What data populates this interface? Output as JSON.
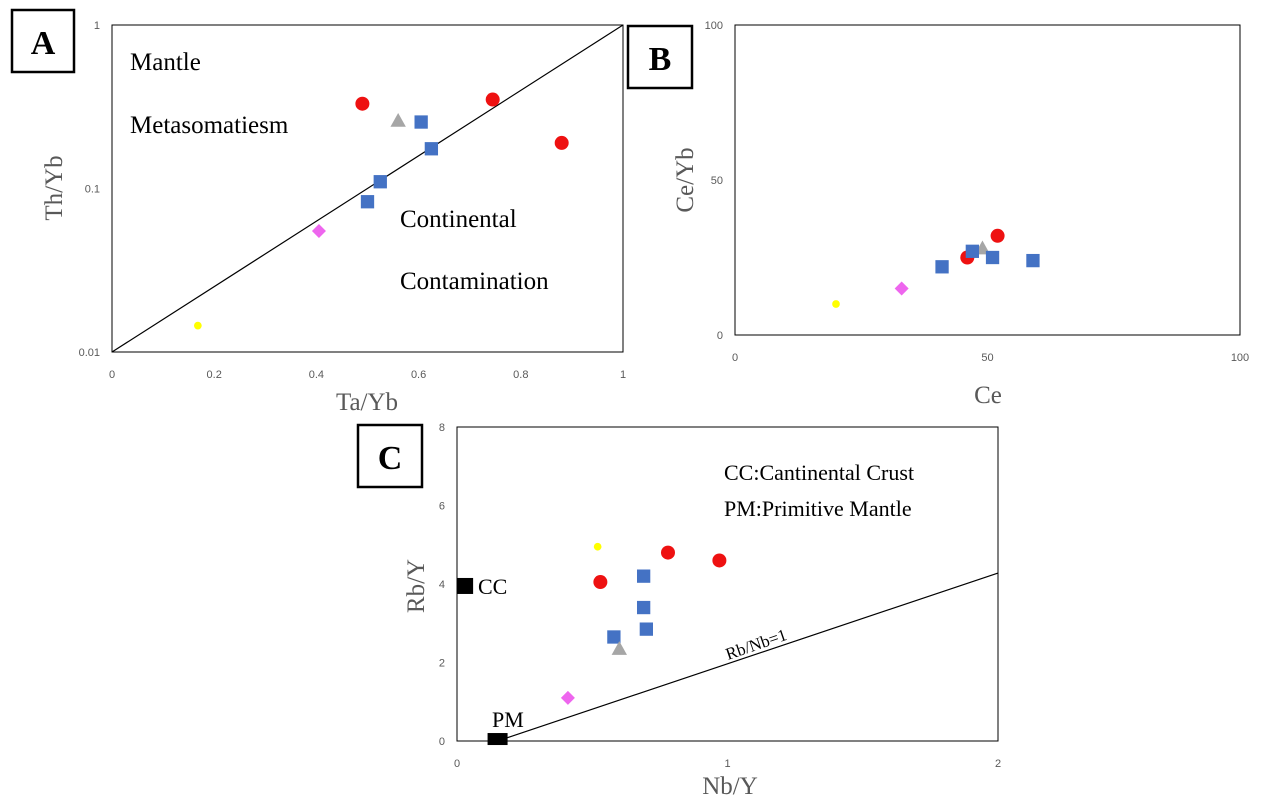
{
  "colors": {
    "red": "#ee1111",
    "blue": "#4472c4",
    "gray": "#a6a6a6",
    "yellow": "#ffff00",
    "magenta": "#ee66ee",
    "black": "#000000"
  },
  "chart_data": [
    {
      "panel": "A",
      "type": "scatter",
      "xlabel": "Ta/Yb",
      "ylabel": "Th/Yb",
      "xlim": [
        0,
        1
      ],
      "ylim": [
        0.01,
        1
      ],
      "y_scale": "log",
      "x_ticks": [
        "0",
        "0.2",
        "0.4",
        "0.6",
        "0.8",
        "1"
      ],
      "y_ticks": [
        "0.01",
        "0.1",
        "1"
      ],
      "grid": false,
      "reference_line": {
        "from": [
          0,
          0.01
        ],
        "to": [
          1,
          1
        ]
      },
      "annotations": [
        "Mantle",
        "Metasomatiesm",
        "Continental",
        "Contamination"
      ],
      "points": [
        {
          "x": 0.49,
          "y": 0.33,
          "color": "red",
          "marker": "circle"
        },
        {
          "x": 0.745,
          "y": 0.35,
          "color": "red",
          "marker": "circle"
        },
        {
          "x": 0.88,
          "y": 0.19,
          "color": "red",
          "marker": "circle"
        },
        {
          "x": 0.56,
          "y": 0.26,
          "color": "gray",
          "marker": "triangle"
        },
        {
          "x": 0.605,
          "y": 0.255,
          "color": "blue",
          "marker": "square"
        },
        {
          "x": 0.625,
          "y": 0.175,
          "color": "blue",
          "marker": "square"
        },
        {
          "x": 0.525,
          "y": 0.11,
          "color": "blue",
          "marker": "square"
        },
        {
          "x": 0.5,
          "y": 0.083,
          "color": "blue",
          "marker": "square"
        },
        {
          "x": 0.405,
          "y": 0.055,
          "color": "magenta",
          "marker": "diamond"
        },
        {
          "x": 0.168,
          "y": 0.0145,
          "color": "yellow",
          "marker": "circle"
        }
      ]
    },
    {
      "panel": "B",
      "type": "scatter",
      "xlabel": "Ce",
      "ylabel": "Ce/Yb",
      "xlim": [
        0,
        100
      ],
      "ylim": [
        0,
        100
      ],
      "x_ticks": [
        "0",
        "50",
        "100"
      ],
      "y_ticks": [
        "0",
        "50",
        "100"
      ],
      "grid": false,
      "points": [
        {
          "x": 46,
          "y": 25,
          "color": "red",
          "marker": "circle"
        },
        {
          "x": 52,
          "y": 32,
          "color": "red",
          "marker": "circle"
        },
        {
          "x": 49,
          "y": 28,
          "color": "gray",
          "marker": "triangle"
        },
        {
          "x": 47,
          "y": 27,
          "color": "blue",
          "marker": "square"
        },
        {
          "x": 51,
          "y": 25,
          "color": "blue",
          "marker": "square"
        },
        {
          "x": 41,
          "y": 22,
          "color": "blue",
          "marker": "square"
        },
        {
          "x": 59,
          "y": 24,
          "color": "blue",
          "marker": "square"
        },
        {
          "x": 33,
          "y": 15,
          "color": "magenta",
          "marker": "diamond"
        },
        {
          "x": 20,
          "y": 10,
          "color": "yellow",
          "marker": "circle"
        }
      ]
    },
    {
      "panel": "C",
      "type": "scatter",
      "xlabel": "Nb/Y",
      "ylabel": "Rb/Y",
      "xlim": [
        0,
        2
      ],
      "ylim": [
        0,
        8
      ],
      "x_ticks": [
        "0",
        "1",
        "2"
      ],
      "y_ticks": [
        "0",
        "2",
        "4",
        "6",
        "8"
      ],
      "grid": false,
      "reference_line": {
        "label": "Rb/Nb=1",
        "from": [
          0.15,
          0
        ],
        "to": [
          2,
          4.28
        ]
      },
      "annotations": [
        "CC:Cantinental Crust",
        "PM:Primitive Mantle"
      ],
      "reference_points": [
        {
          "label": "CC",
          "x": 0.03,
          "y": 3.95,
          "color": "black",
          "marker": "square"
        },
        {
          "label": "PM",
          "x": 0.15,
          "y": 0.05,
          "color": "black",
          "marker": "square"
        }
      ],
      "points": [
        {
          "x": 0.52,
          "y": 4.95,
          "color": "yellow",
          "marker": "circle"
        },
        {
          "x": 0.53,
          "y": 4.05,
          "color": "red",
          "marker": "circle"
        },
        {
          "x": 0.78,
          "y": 4.8,
          "color": "red",
          "marker": "circle"
        },
        {
          "x": 0.97,
          "y": 4.6,
          "color": "red",
          "marker": "circle"
        },
        {
          "x": 0.69,
          "y": 4.2,
          "color": "blue",
          "marker": "square"
        },
        {
          "x": 0.69,
          "y": 3.4,
          "color": "blue",
          "marker": "square"
        },
        {
          "x": 0.7,
          "y": 2.85,
          "color": "blue",
          "marker": "square"
        },
        {
          "x": 0.58,
          "y": 2.65,
          "color": "blue",
          "marker": "square"
        },
        {
          "x": 0.6,
          "y": 2.35,
          "color": "gray",
          "marker": "triangle"
        },
        {
          "x": 0.41,
          "y": 1.1,
          "color": "magenta",
          "marker": "diamond"
        }
      ]
    }
  ]
}
